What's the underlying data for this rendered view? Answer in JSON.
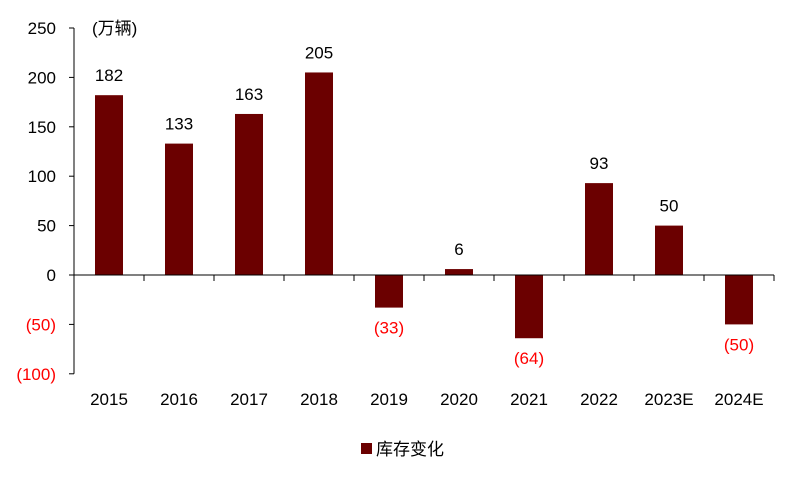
{
  "chart_data": {
    "type": "bar",
    "unit_label": "(万辆)",
    "categories": [
      "2015",
      "2016",
      "2017",
      "2018",
      "2019",
      "2020",
      "2021",
      "2022",
      "2023E",
      "2024E"
    ],
    "series": [
      {
        "name": "库存变化",
        "values": [
          182,
          133,
          163,
          205,
          -33,
          6,
          -64,
          93,
          50,
          -50
        ],
        "data_labels": [
          "182",
          "133",
          "163",
          "205",
          "(33)",
          "6",
          "(64)",
          "93",
          "50",
          "(50)"
        ]
      }
    ],
    "y_ticks": [
      {
        "value": 250,
        "label": "250"
      },
      {
        "value": 200,
        "label": "200"
      },
      {
        "value": 150,
        "label": "150"
      },
      {
        "value": 100,
        "label": "100"
      },
      {
        "value": 50,
        "label": "50"
      },
      {
        "value": 0,
        "label": "0"
      },
      {
        "value": -50,
        "label": "(50)"
      },
      {
        "value": -100,
        "label": "(100)"
      }
    ],
    "ylim": [
      -100,
      250
    ],
    "grid": false,
    "legend_position": "bottom-center",
    "colors": {
      "bar": "#6b0000",
      "negative_text": "#ff0000",
      "text": "#000000",
      "axis": "#000000"
    }
  }
}
